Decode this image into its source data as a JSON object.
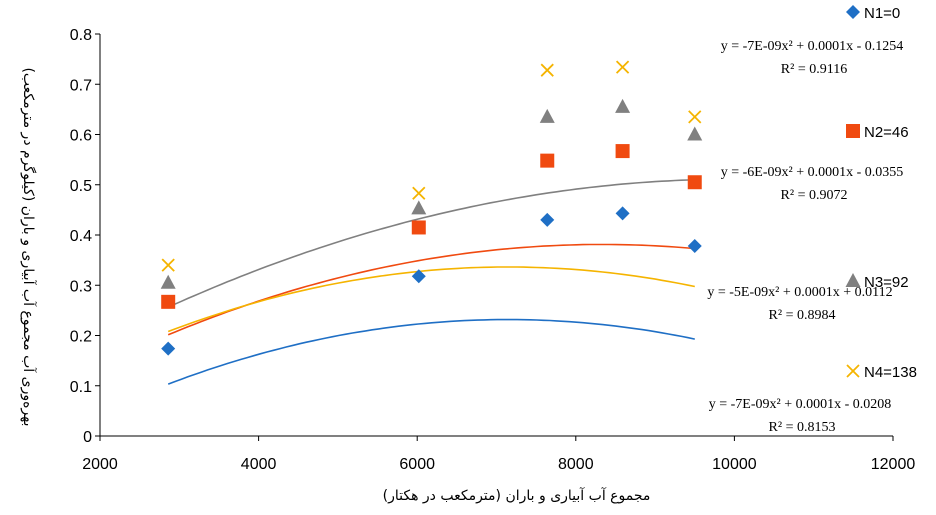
{
  "chart_data": {
    "type": "scatter",
    "xlabel": "مجموع آب آبیاری و باران (مترمکعب در هکتار)",
    "ylabel": "بهره‌وری آب مجموع آب آبیاری و باران (کیلوگرم در مترمکعب)",
    "xlim": [
      2000,
      12000
    ],
    "ylim": [
      0,
      0.8
    ],
    "x_ticks": [
      "2000",
      "4000",
      "6000",
      "8000",
      "10000",
      "12000"
    ],
    "y_ticks": [
      "0",
      "0.1",
      "0.2",
      "0.3",
      "0.4",
      "0.5",
      "0.6",
      "0.7",
      "0.8"
    ],
    "grid": false,
    "legend_position": "right",
    "series": [
      {
        "name": "N1=0",
        "marker": "diamond",
        "color": "#1f6fc5",
        "x": [
          2860,
          6020,
          7640,
          8590,
          9500
        ],
        "y": [
          0.174,
          0.318,
          0.43,
          0.443,
          0.378
        ],
        "trend": {
          "a": -7e-09,
          "b": 0.0001,
          "c": -0.1254
        },
        "equation": "y = -7E-09x² + 0.0001x - 0.1254",
        "r2": "R² = 0.9116"
      },
      {
        "name": "N2=46",
        "marker": "square",
        "color": "#f04a10",
        "x": [
          2860,
          6020,
          7640,
          8590,
          9500
        ],
        "y": [
          0.267,
          0.415,
          0.548,
          0.567,
          0.505
        ],
        "trend": {
          "a": -6e-09,
          "b": 0.0001,
          "c": -0.0355
        },
        "equation": "y = -6E-09x² + 0.0001x - 0.0355",
        "r2": "R² = 0.9072"
      },
      {
        "name": "N3=92",
        "marker": "triangle",
        "color": "#808080",
        "x": [
          2860,
          6020,
          7640,
          8590,
          9500
        ],
        "y": [
          0.305,
          0.453,
          0.635,
          0.655,
          0.6
        ],
        "trend": {
          "a": -5e-09,
          "b": 0.0001,
          "c": 0.0112
        },
        "equation": "y = -5E-09x² + 0.0001x + 0.0112",
        "r2": "R² = 0.8984"
      },
      {
        "name": "N4=138",
        "marker": "x",
        "color": "#f5b400",
        "x": [
          2860,
          6020,
          7640,
          8590,
          9500
        ],
        "y": [
          0.34,
          0.483,
          0.728,
          0.734,
          0.635
        ],
        "trend": {
          "a": -7e-09,
          "b": 0.0001,
          "c": -0.0208
        },
        "equation": "y = -7E-09x² + 0.0001x - 0.0208",
        "r2": "R² = 0.8153"
      }
    ]
  }
}
